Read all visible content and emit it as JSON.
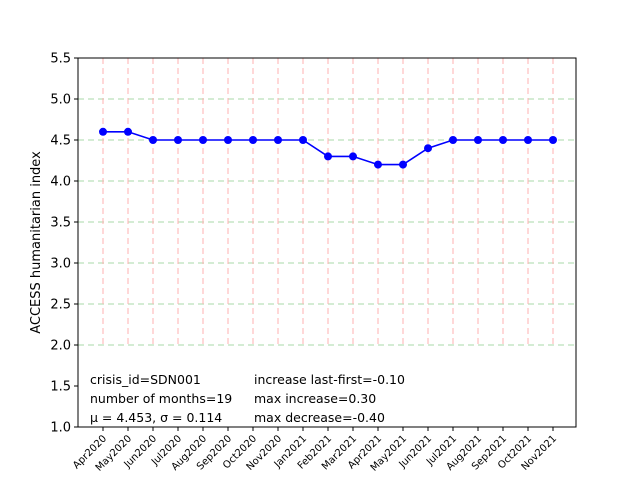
{
  "chart_data": {
    "type": "line",
    "title": "",
    "xlabel": "",
    "ylabel": "ACCESS humanitarian index",
    "categories": [
      "Apr2020",
      "May2020",
      "Jun2020",
      "Jul2020",
      "Aug2020",
      "Sep2020",
      "Oct2020",
      "Nov2020",
      "Jan2021",
      "Feb2021",
      "Mar2021",
      "Apr2021",
      "May2021",
      "Jun2021",
      "Jul2021",
      "Aug2021",
      "Sep2021",
      "Oct2021",
      "Nov2021"
    ],
    "series": [
      {
        "values": [
          4.6,
          4.6,
          4.5,
          4.5,
          4.5,
          4.5,
          4.5,
          4.5,
          4.5,
          4.3,
          4.3,
          4.2,
          4.2,
          4.4,
          4.5,
          4.5,
          4.5,
          4.5,
          4.5
        ],
        "color": "#0000ff"
      }
    ],
    "ylim": [
      1.0,
      5.5
    ],
    "yticks": [
      "1.0",
      "1.5",
      "2.0",
      "2.5",
      "3.0",
      "3.5",
      "4.0",
      "4.5",
      "5.0",
      "5.5"
    ],
    "grid": true,
    "vertical_grid_color": "#ffb0b0",
    "horizontal_grid_color": "#a8d8a8",
    "horizontal_grid_values": [
      2.0,
      2.5,
      3.0,
      3.5,
      4.0,
      4.5,
      5.0
    ],
    "grid_lower_bound": 2.0,
    "annotations": {
      "left": [
        "crisis_id=SDN001",
        "number of months=19",
        "μ = 4.453,  σ = 0.114"
      ],
      "right": [
        "increase last-first=-0.10",
        "max increase=0.30",
        "max decrease=-0.40"
      ]
    }
  }
}
